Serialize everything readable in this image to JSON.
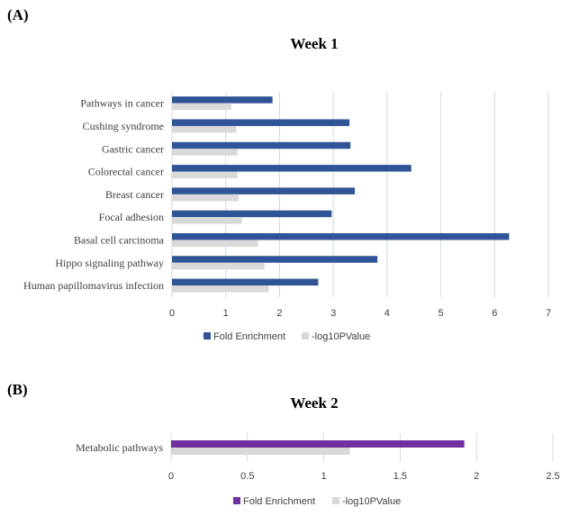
{
  "panels": {
    "a_label": "(A)",
    "b_label": "(B)"
  },
  "colors": {
    "fold_a": "#2f5597",
    "fold_b": "#7030a0",
    "log_p": "#d9d9d9",
    "grid": "#d9d9d9"
  },
  "chart_data": [
    {
      "type": "bar",
      "orientation": "horizontal",
      "title": "Week 1",
      "categories": [
        "Pathways in cancer",
        "Cushing syndrome",
        "Gastric cancer",
        "Colorectal cancer",
        "Breast cancer",
        "Focal adhesion",
        "Basal cell carcinoma",
        "Hippo signaling pathway",
        "Human papillomavirus infection"
      ],
      "series": [
        {
          "name": "Fold Enrichment",
          "color": "#2f5597",
          "values": [
            1.87,
            3.3,
            3.32,
            4.45,
            3.4,
            2.97,
            6.27,
            3.82,
            2.72
          ]
        },
        {
          "name": "-log10PValue",
          "color": "#d9d9d9",
          "values": [
            1.1,
            1.2,
            1.22,
            1.22,
            1.24,
            1.3,
            1.6,
            1.72,
            1.8
          ]
        }
      ],
      "xlim": [
        0,
        7
      ],
      "xticks": [
        "0",
        "1",
        "2",
        "3",
        "4",
        "5",
        "6",
        "7"
      ],
      "grid": true,
      "legend": "bottom"
    },
    {
      "type": "bar",
      "orientation": "horizontal",
      "title": "Week  2",
      "categories": [
        "Metabolic pathways"
      ],
      "series": [
        {
          "name": "Fold Enrichment",
          "color": "#7030a0",
          "values": [
            1.92
          ]
        },
        {
          "name": "-log10PValue",
          "color": "#d9d9d9",
          "values": [
            1.17
          ]
        }
      ],
      "xlim": [
        0,
        2.5
      ],
      "xticks": [
        "0",
        "0.5",
        "1",
        "1.5",
        "2",
        "2.5"
      ],
      "grid": true,
      "legend": "bottom"
    }
  ]
}
